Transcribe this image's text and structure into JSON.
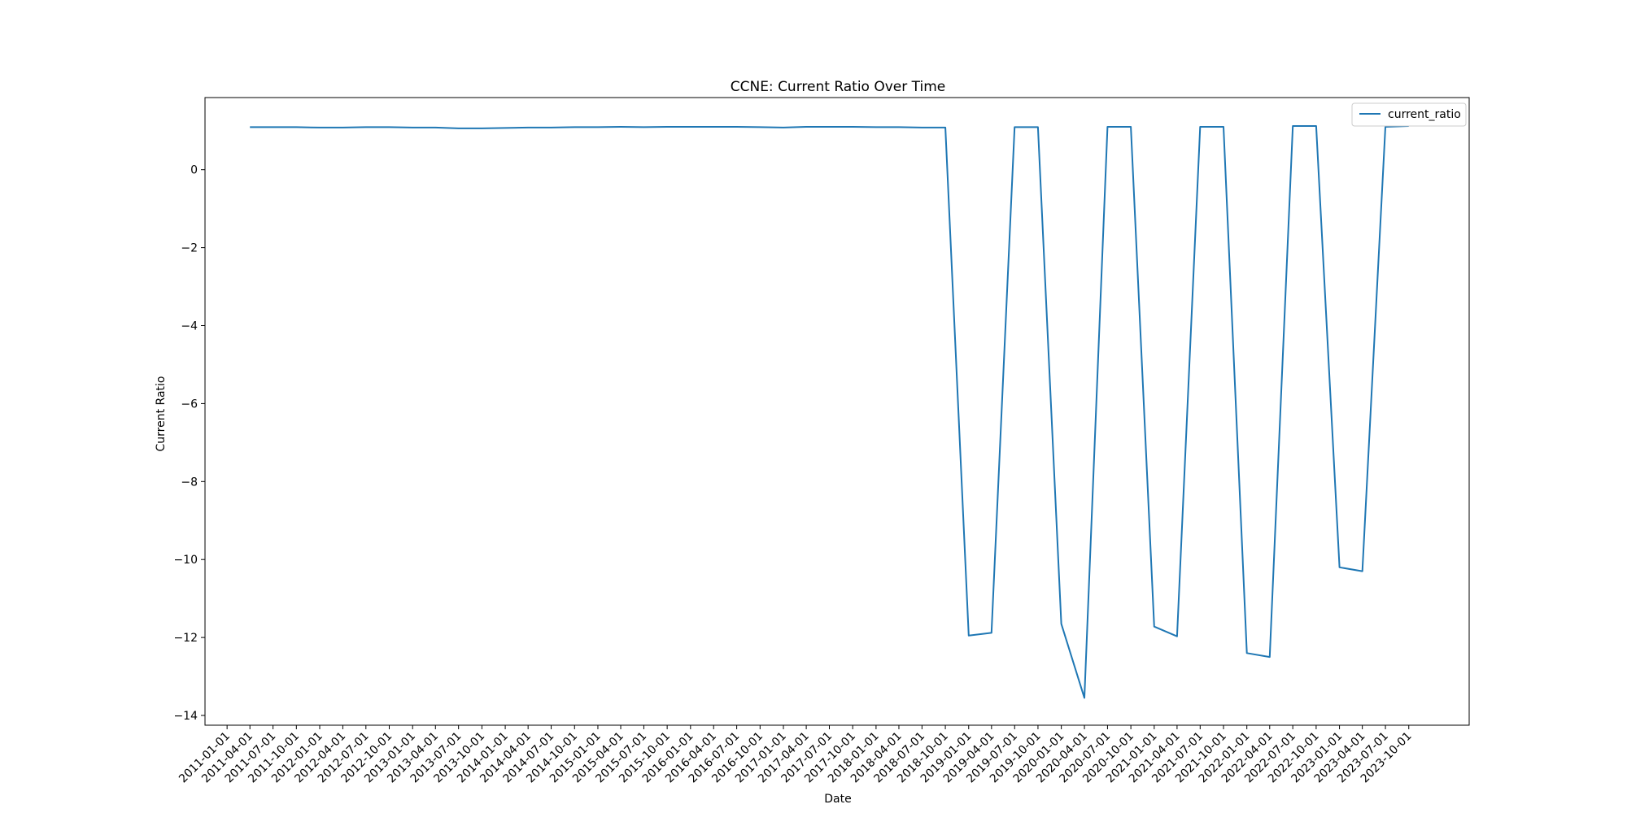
{
  "chart_data": {
    "type": "line",
    "title": "CCNE: Current Ratio Over Time",
    "xlabel": "Date",
    "ylabel": "Current Ratio",
    "ylim": [
      -14.25,
      1.85
    ],
    "yticks": [
      0,
      -2,
      -4,
      -6,
      -8,
      -10,
      -12,
      -14
    ],
    "xticks": [
      "2011-01-01",
      "2011-04-01",
      "2011-07-01",
      "2011-10-01",
      "2012-01-01",
      "2012-04-01",
      "2012-07-01",
      "2012-10-01",
      "2013-01-01",
      "2013-04-01",
      "2013-07-01",
      "2013-10-01",
      "2014-01-01",
      "2014-04-01",
      "2014-07-01",
      "2014-10-01",
      "2015-01-01",
      "2015-04-01",
      "2015-07-01",
      "2015-10-01",
      "2016-01-01",
      "2016-04-01",
      "2016-07-01",
      "2016-10-01",
      "2017-01-01",
      "2017-04-01",
      "2017-07-01",
      "2017-10-01",
      "2018-01-01",
      "2018-04-01",
      "2018-07-01",
      "2018-10-01",
      "2019-01-01",
      "2019-04-01",
      "2019-07-01",
      "2019-10-01",
      "2020-01-01",
      "2020-04-01",
      "2020-07-01",
      "2020-10-01",
      "2021-01-01",
      "2021-04-01",
      "2021-07-01",
      "2021-10-01",
      "2022-01-01",
      "2022-04-01",
      "2022-07-01",
      "2022-10-01",
      "2023-01-01",
      "2023-04-01",
      "2023-07-01",
      "2023-10-01"
    ],
    "grid": false,
    "legend_position": "top-right",
    "series": [
      {
        "name": "current_ratio",
        "color": "#1f77b4",
        "x": [
          "2011-04-01",
          "2011-07-01",
          "2011-10-01",
          "2012-01-01",
          "2012-04-01",
          "2012-07-01",
          "2012-10-01",
          "2013-01-01",
          "2013-04-01",
          "2013-07-01",
          "2013-10-01",
          "2014-01-01",
          "2014-04-01",
          "2014-07-01",
          "2014-10-01",
          "2015-01-01",
          "2015-04-01",
          "2015-07-01",
          "2015-10-01",
          "2016-01-01",
          "2016-04-01",
          "2016-07-01",
          "2016-10-01",
          "2017-01-01",
          "2017-04-01",
          "2017-07-01",
          "2017-10-01",
          "2018-01-01",
          "2018-04-01",
          "2018-07-01",
          "2018-10-01",
          "2019-01-01",
          "2019-04-01",
          "2019-07-01",
          "2019-10-01",
          "2020-01-01",
          "2020-04-01",
          "2020-07-01",
          "2020-10-01",
          "2021-01-01",
          "2021-04-01",
          "2021-07-01",
          "2021-10-01",
          "2022-01-01",
          "2022-04-01",
          "2022-07-01",
          "2022-10-01",
          "2023-01-01",
          "2023-04-01",
          "2023-07-01",
          "2023-10-01"
        ],
        "values": [
          1.09,
          1.09,
          1.09,
          1.08,
          1.08,
          1.09,
          1.09,
          1.08,
          1.08,
          1.06,
          1.06,
          1.07,
          1.08,
          1.08,
          1.09,
          1.09,
          1.1,
          1.09,
          1.1,
          1.1,
          1.1,
          1.1,
          1.09,
          1.08,
          1.1,
          1.1,
          1.1,
          1.09,
          1.09,
          1.08,
          1.08,
          -11.95,
          -11.88,
          1.09,
          1.09,
          -11.65,
          -13.55,
          1.1,
          1.1,
          -11.72,
          -11.97,
          1.1,
          1.1,
          -12.4,
          -12.5,
          1.12,
          1.12,
          -10.2,
          -10.3,
          1.1,
          1.12
        ]
      }
    ]
  }
}
